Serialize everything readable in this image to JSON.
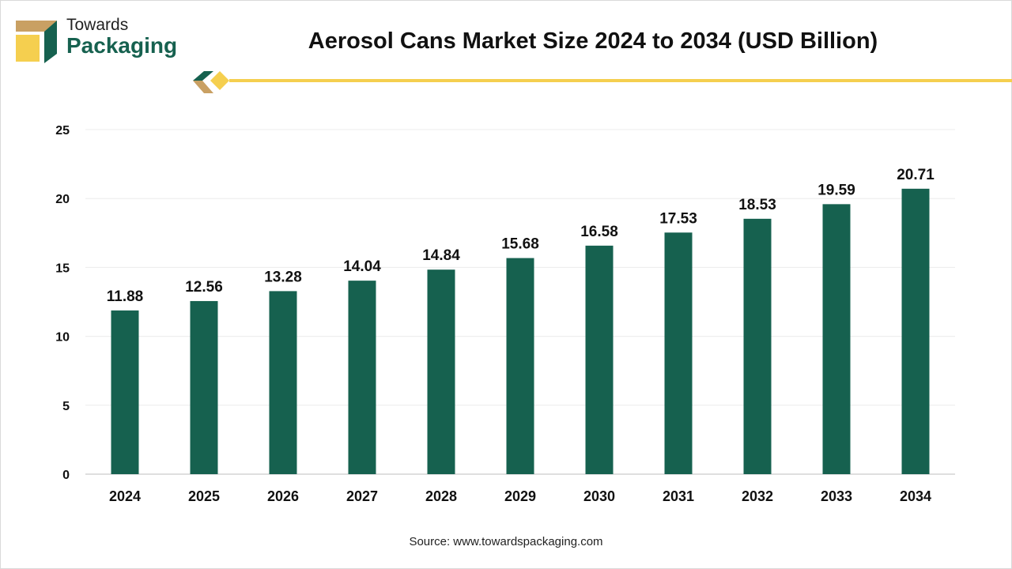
{
  "brand": {
    "line1": "Towards",
    "line2": "Packaging"
  },
  "source": "Source: www.towardspackaging.com",
  "colors": {
    "bar": "#16614f",
    "accent_yellow": "#f5cf4f",
    "accent_tan": "#c9a063"
  },
  "chart_data": {
    "type": "bar",
    "title": "Aerosol Cans Market Size 2024 to 2034 (USD Billion)",
    "xlabel": "",
    "ylabel": "",
    "categories": [
      "2024",
      "2025",
      "2026",
      "2027",
      "2028",
      "2029",
      "2030",
      "2031",
      "2032",
      "2033",
      "2034"
    ],
    "values": [
      11.88,
      12.56,
      13.28,
      14.04,
      14.84,
      15.68,
      16.58,
      17.53,
      18.53,
      19.59,
      20.71
    ],
    "ylim": [
      0,
      25
    ],
    "yticks": [
      0,
      5,
      10,
      15,
      20,
      25
    ],
    "grid": true,
    "data_labels": true
  }
}
